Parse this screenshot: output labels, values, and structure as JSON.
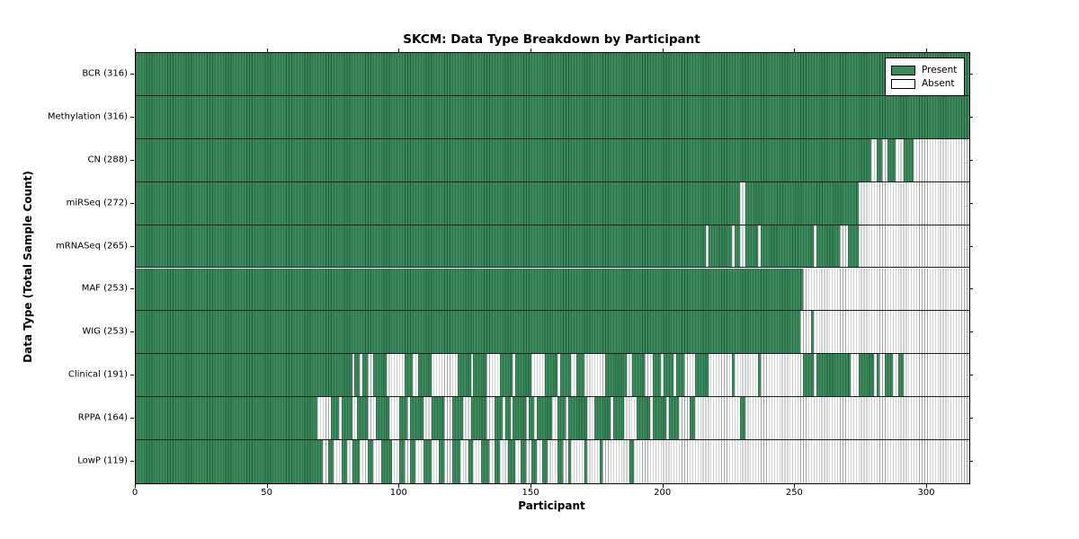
{
  "figure": {
    "title": "SKCM: Data Type Breakdown by Participant",
    "xlabel": "Participant",
    "ylabel": "Data Type (Total Sample Count)"
  },
  "legend": {
    "items": [
      {
        "label": "Present",
        "color": "#3a8a5c"
      },
      {
        "label": "Absent",
        "color": "#ffffff"
      }
    ]
  },
  "colors": {
    "present_fill": "#3a8a5c",
    "present_hatch_line": "#1f5c3a",
    "absent_fill": "#ffffff",
    "absent_hatch_line": "#a6a6a6",
    "axis": "#000000",
    "background": "#ffffff"
  },
  "chart_data": {
    "type": "heatmap",
    "title": "SKCM: Data Type Breakdown by Participant",
    "xlabel": "Participant",
    "ylabel": "Data Type (Total Sample Count)",
    "legend": [
      "Present",
      "Absent"
    ],
    "legend_position": "upper right",
    "grid": false,
    "xlim": [
      0,
      316
    ],
    "x_ticks": [
      0,
      50,
      100,
      150,
      200,
      250,
      300
    ],
    "n_participants": 316,
    "value_encoding": "present_runs are [start,end) participant index ranges with data present; all other participants absent",
    "rows": [
      {
        "label": "BCR (316)",
        "name": "BCR",
        "total": 316,
        "present_runs": [
          [
            0,
            316
          ]
        ]
      },
      {
        "label": "Methylation (316)",
        "name": "Methylation",
        "total": 316,
        "present_runs": [
          [
            0,
            316
          ]
        ]
      },
      {
        "label": "CN (288)",
        "name": "CN",
        "total": 288,
        "present_runs": [
          [
            0,
            279
          ],
          [
            281,
            283
          ],
          [
            285,
            288
          ],
          [
            291,
            295
          ]
        ]
      },
      {
        "label": "miRSeq (272)",
        "name": "miRSeq",
        "total": 272,
        "present_runs": [
          [
            0,
            229
          ],
          [
            231,
            274
          ]
        ]
      },
      {
        "label": "mRNASeq (265)",
        "name": "mRNASeq",
        "total": 265,
        "present_runs": [
          [
            0,
            216
          ],
          [
            217,
            226
          ],
          [
            227,
            229
          ],
          [
            231,
            236
          ],
          [
            237,
            257
          ],
          [
            258,
            267
          ],
          [
            270,
            274
          ]
        ]
      },
      {
        "label": "MAF (253)",
        "name": "MAF",
        "total": 253,
        "present_runs": [
          [
            0,
            253
          ]
        ]
      },
      {
        "label": "WIG (253)",
        "name": "WIG",
        "total": 253,
        "present_runs": [
          [
            0,
            252
          ],
          [
            256,
            257
          ]
        ]
      },
      {
        "label": "Clinical (191)",
        "name": "Clinical",
        "total": 191,
        "present_runs": [
          [
            0,
            82
          ],
          [
            83,
            85
          ],
          [
            86,
            88
          ],
          [
            90,
            95
          ],
          [
            102,
            105
          ],
          [
            107,
            112
          ],
          [
            122,
            127
          ],
          [
            128,
            133
          ],
          [
            138,
            143
          ],
          [
            144,
            150
          ],
          [
            155,
            160
          ],
          [
            161,
            165
          ],
          [
            167,
            170
          ],
          [
            178,
            186
          ],
          [
            188,
            193
          ],
          [
            196,
            199
          ],
          [
            200,
            204
          ],
          [
            205,
            208
          ],
          [
            212,
            217
          ],
          [
            226,
            227
          ],
          [
            236,
            237
          ],
          [
            253,
            257
          ],
          [
            258,
            271
          ],
          [
            274,
            280
          ],
          [
            281,
            282
          ],
          [
            284,
            287
          ],
          [
            289,
            291
          ]
        ]
      },
      {
        "label": "RPPA (164)",
        "name": "RPPA",
        "total": 164,
        "present_runs": [
          [
            0,
            69
          ],
          [
            74,
            77
          ],
          [
            78,
            82
          ],
          [
            84,
            88
          ],
          [
            91,
            96
          ],
          [
            100,
            103
          ],
          [
            104,
            109
          ],
          [
            112,
            117
          ],
          [
            120,
            124
          ],
          [
            127,
            133
          ],
          [
            136,
            139
          ],
          [
            140,
            142
          ],
          [
            143,
            148
          ],
          [
            149,
            151
          ],
          [
            152,
            158
          ],
          [
            160,
            163
          ],
          [
            164,
            171
          ],
          [
            174,
            180
          ],
          [
            181,
            185
          ],
          [
            190,
            195
          ],
          [
            196,
            201
          ],
          [
            202,
            206
          ],
          [
            210,
            212
          ],
          [
            229,
            231
          ]
        ]
      },
      {
        "label": "LowP (119)",
        "name": "LowP",
        "total": 119,
        "present_runs": [
          [
            0,
            71
          ],
          [
            73,
            75
          ],
          [
            78,
            80
          ],
          [
            82,
            85
          ],
          [
            88,
            90
          ],
          [
            93,
            97
          ],
          [
            100,
            102
          ],
          [
            104,
            106
          ],
          [
            109,
            112
          ],
          [
            115,
            117
          ],
          [
            120,
            123
          ],
          [
            126,
            128
          ],
          [
            131,
            134
          ],
          [
            136,
            138
          ],
          [
            141,
            144
          ],
          [
            146,
            148
          ],
          [
            150,
            152
          ],
          [
            154,
            156
          ],
          [
            160,
            162
          ],
          [
            164,
            165
          ],
          [
            170,
            171
          ],
          [
            176,
            177
          ],
          [
            187,
            189
          ]
        ]
      }
    ]
  }
}
